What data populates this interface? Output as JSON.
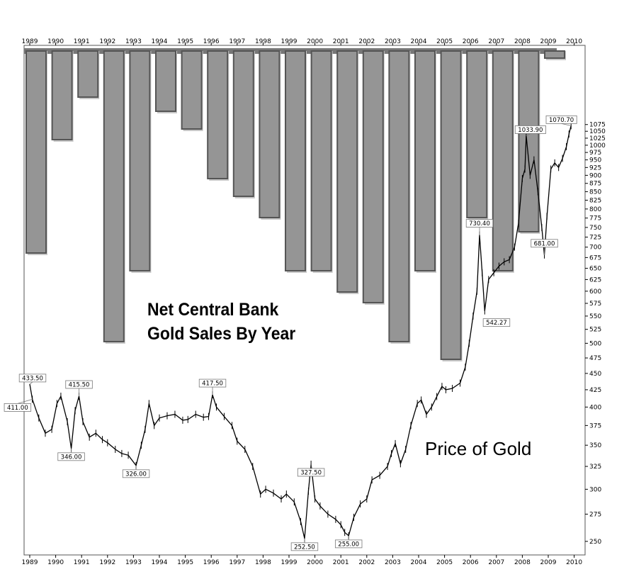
{
  "chart_data": [
    {
      "type": "bar",
      "title": "Net Central Bank Gold Sales By Year",
      "categories": [
        "1989",
        "1990",
        "1991",
        "1992",
        "1993",
        "1994",
        "1995",
        "1996",
        "1997",
        "1998",
        "1999",
        "2000",
        "2001",
        "2002",
        "2003",
        "2004",
        "2005",
        "2006",
        "2007",
        "2008",
        "2009"
      ],
      "values": [
        285,
        125,
        65,
        410,
        310,
        85,
        110,
        180,
        205,
        235,
        310,
        310,
        340,
        355,
        410,
        310,
        435,
        235,
        310,
        255,
        10
      ],
      "series_note": "bars hang downward from the top of the chart; relative magnitudes only, no value axis printed"
    },
    {
      "type": "line",
      "label": "Price of Gold",
      "x_ticks": [
        "1989",
        "1990",
        "1991",
        "1992",
        "1993",
        "1994",
        "1995",
        "1996",
        "1997",
        "1998",
        "1999",
        "2000",
        "2001",
        "2002",
        "2003",
        "2004",
        "2005",
        "2006",
        "2007",
        "2008",
        "2009",
        "2010"
      ],
      "y_ticks": [
        250,
        275,
        300,
        325,
        350,
        375,
        400,
        425,
        450,
        475,
        500,
        525,
        550,
        575,
        600,
        625,
        650,
        675,
        700,
        725,
        750,
        775,
        800,
        825,
        850,
        875,
        900,
        925,
        950,
        975,
        1000,
        1025,
        1050,
        1075
      ],
      "ylim": [
        245,
        1085
      ],
      "y_scale": "log",
      "grid": false,
      "points": [
        [
          1989.0,
          433.5
        ],
        [
          1989.1,
          411.0
        ],
        [
          1989.35,
          385
        ],
        [
          1989.6,
          365
        ],
        [
          1989.85,
          370
        ],
        [
          1990.05,
          405
        ],
        [
          1990.2,
          415.5
        ],
        [
          1990.45,
          380
        ],
        [
          1990.6,
          346.0
        ],
        [
          1990.75,
          395
        ],
        [
          1990.9,
          415.5
        ],
        [
          1991.05,
          380
        ],
        [
          1991.3,
          360
        ],
        [
          1991.55,
          365
        ],
        [
          1991.8,
          357
        ],
        [
          1992.0,
          353
        ],
        [
          1992.3,
          345
        ],
        [
          1992.55,
          340
        ],
        [
          1992.8,
          338
        ],
        [
          1993.1,
          326.0
        ],
        [
          1993.3,
          350
        ],
        [
          1993.45,
          370
        ],
        [
          1993.6,
          405
        ],
        [
          1993.8,
          375
        ],
        [
          1994.0,
          385
        ],
        [
          1994.3,
          388
        ],
        [
          1994.6,
          390
        ],
        [
          1994.9,
          382
        ],
        [
          1995.1,
          383
        ],
        [
          1995.4,
          390
        ],
        [
          1995.7,
          386
        ],
        [
          1995.9,
          387
        ],
        [
          1996.05,
          417.5
        ],
        [
          1996.2,
          400
        ],
        [
          1996.5,
          387
        ],
        [
          1996.8,
          375
        ],
        [
          1997.0,
          355
        ],
        [
          1997.3,
          345
        ],
        [
          1997.6,
          325
        ],
        [
          1997.9,
          295
        ],
        [
          1998.1,
          300
        ],
        [
          1998.4,
          296
        ],
        [
          1998.7,
          290
        ],
        [
          1998.9,
          295
        ],
        [
          1999.2,
          287
        ],
        [
          1999.45,
          268
        ],
        [
          1999.6,
          252.5
        ],
        [
          1999.75,
          298
        ],
        [
          1999.85,
          327.5
        ],
        [
          2000.0,
          290
        ],
        [
          2000.2,
          283
        ],
        [
          2000.5,
          275
        ],
        [
          2000.8,
          270
        ],
        [
          2001.0,
          265
        ],
        [
          2001.15,
          258
        ],
        [
          2001.3,
          255.0
        ],
        [
          2001.5,
          272
        ],
        [
          2001.75,
          285
        ],
        [
          2002.0,
          290
        ],
        [
          2002.2,
          310
        ],
        [
          2002.5,
          315
        ],
        [
          2002.8,
          325
        ],
        [
          2002.95,
          340
        ],
        [
          2003.1,
          352
        ],
        [
          2003.3,
          328
        ],
        [
          2003.5,
          345
        ],
        [
          2003.7,
          375
        ],
        [
          2003.95,
          405
        ],
        [
          2004.1,
          410
        ],
        [
          2004.3,
          390
        ],
        [
          2004.5,
          400
        ],
        [
          2004.7,
          415
        ],
        [
          2004.9,
          430
        ],
        [
          2005.05,
          425
        ],
        [
          2005.3,
          427
        ],
        [
          2005.6,
          435
        ],
        [
          2005.8,
          460
        ],
        [
          2005.95,
          500
        ],
        [
          2006.1,
          550
        ],
        [
          2006.25,
          600
        ],
        [
          2006.35,
          730.4
        ],
        [
          2006.45,
          640
        ],
        [
          2006.55,
          560
        ],
        [
          2006.7,
          625
        ],
        [
          2006.9,
          640
        ],
        [
          2007.1,
          655
        ],
        [
          2007.3,
          665
        ],
        [
          2007.5,
          670
        ],
        [
          2007.7,
          700
        ],
        [
          2007.85,
          760
        ],
        [
          2008.0,
          890
        ],
        [
          2008.1,
          920
        ],
        [
          2008.15,
          1033.9
        ],
        [
          2008.3,
          900
        ],
        [
          2008.45,
          950
        ],
        [
          2008.6,
          850
        ],
        [
          2008.75,
          750
        ],
        [
          2008.85,
          681.0
        ],
        [
          2008.95,
          780
        ],
        [
          2009.1,
          920
        ],
        [
          2009.25,
          940
        ],
        [
          2009.4,
          925
        ],
        [
          2009.55,
          955
        ],
        [
          2009.7,
          995
        ],
        [
          2009.8,
          1040
        ],
        [
          2009.88,
          1070.7
        ]
      ],
      "annotations": [
        {
          "x": 1989.0,
          "y": 433.5,
          "text": "433.50"
        },
        {
          "x": 1989.1,
          "y": 411.0,
          "text": "411.00"
        },
        {
          "x": 1990.9,
          "y": 415.5,
          "text": "415.50"
        },
        {
          "x": 1990.6,
          "y": 346.0,
          "text": "346.00"
        },
        {
          "x": 1993.1,
          "y": 326.0,
          "text": "326.00"
        },
        {
          "x": 1996.05,
          "y": 417.5,
          "text": "417.50"
        },
        {
          "x": 1999.85,
          "y": 327.5,
          "text": "327.50"
        },
        {
          "x": 1999.6,
          "y": 252.5,
          "text": "252.50"
        },
        {
          "x": 2001.3,
          "y": 255.0,
          "text": "255.00"
        },
        {
          "x": 2006.35,
          "y": 730.4,
          "text": "730.40"
        },
        {
          "x": 2006.6,
          "y": 542.27,
          "text": "542.27"
        },
        {
          "x": 2008.15,
          "y": 1033.9,
          "text": "1033.90"
        },
        {
          "x": 2008.85,
          "y": 681.0,
          "text": "681.00"
        },
        {
          "x": 2009.88,
          "y": 1070.7,
          "text": "1070.70"
        }
      ]
    }
  ],
  "labels": {
    "title_line1": "Net Central Bank",
    "title_line2": "Gold Sales By Year",
    "series_label": "Price of Gold"
  },
  "colors": {
    "bar_fill": "#959595",
    "bar_edge": "#555555",
    "bar_shadow": "#c8c8c8",
    "price_line": "#000000"
  }
}
